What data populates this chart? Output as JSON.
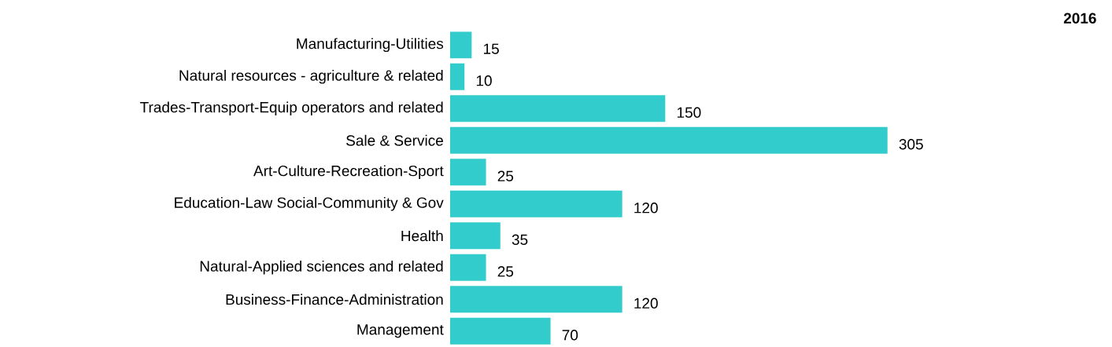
{
  "chart_data": {
    "type": "bar",
    "orientation": "horizontal",
    "title": "2016",
    "categories": [
      "Manufacturing-Utilities",
      "Natural resources - agriculture & related",
      "Trades-Transport-Equip operators and related",
      "Sale & Service",
      "Art-Culture-Recreation-Sport",
      "Education-Law Social-Community & Gov",
      "Health",
      "Natural-Applied sciences and related",
      "Business-Finance-Administration",
      "Management"
    ],
    "values": [
      15,
      10,
      150,
      305,
      25,
      120,
      35,
      25,
      120,
      70
    ],
    "color": "#33cccc",
    "data_labels": true
  }
}
